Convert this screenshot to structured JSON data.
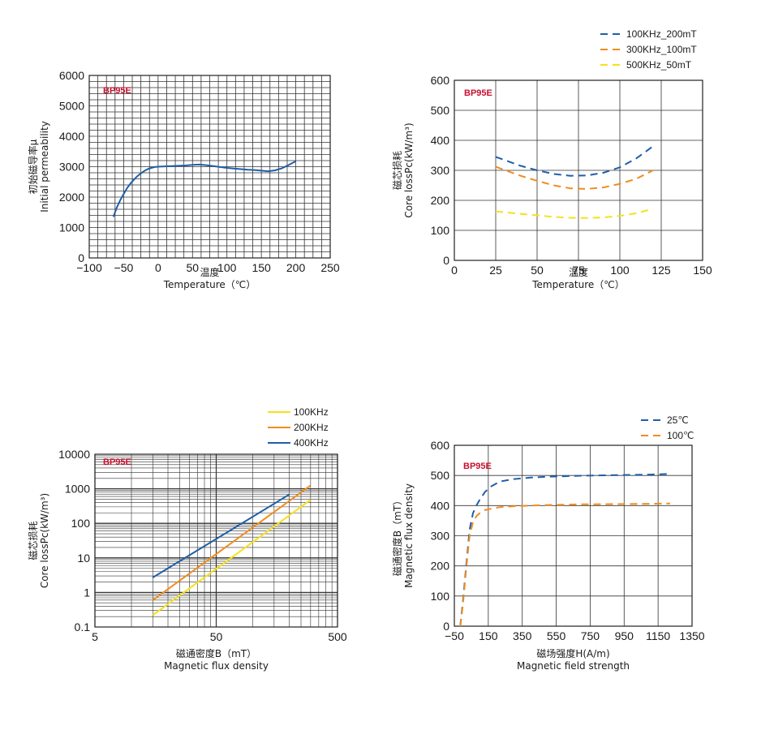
{
  "chart_data": [
    {
      "id": "perm",
      "type": "line",
      "brand": "BP95E",
      "xlabel_cn": "温度",
      "xlabel": "Temperature（℃）",
      "ylabel_cn": "初始磁导率μ",
      "ylabel": "Initial permeability",
      "xlim": [
        -100,
        250
      ],
      "ylim": [
        0,
        6000
      ],
      "x_ticks": [
        -100,
        -50,
        0,
        50,
        100,
        150,
        200,
        250
      ],
      "x_tick_labels": [
        "−100",
        "−50",
        "0",
        "50",
        "100",
        "150",
        "200",
        "250"
      ],
      "y_ticks": [
        0,
        1000,
        2000,
        3000,
        4000,
        5000,
        6000
      ],
      "y_tick_labels": [
        "0",
        "1000",
        "2000",
        "3000",
        "4000",
        "5000",
        "6000"
      ],
      "grid": true,
      "series": [
        {
          "color": "#1f5fa8",
          "dash": false,
          "x": [
            -65,
            -60,
            -55,
            -50,
            -45,
            -40,
            -35,
            -30,
            -25,
            -20,
            -15,
            -10,
            -5,
            0,
            10,
            20,
            30,
            40,
            50,
            60,
            70,
            80,
            90,
            100,
            110,
            120,
            130,
            140,
            150,
            160,
            170,
            180,
            190,
            200
          ],
          "y": [
            1350,
            1650,
            1900,
            2100,
            2300,
            2450,
            2580,
            2690,
            2780,
            2860,
            2920,
            2960,
            2990,
            3000,
            3010,
            3020,
            3030,
            3040,
            3060,
            3070,
            3050,
            3020,
            2990,
            2960,
            2940,
            2920,
            2900,
            2890,
            2870,
            2850,
            2880,
            2950,
            3060,
            3180
          ]
        }
      ]
    },
    {
      "id": "loss_temp",
      "type": "line",
      "brand": "BP95E",
      "xlabel_cn": "温度",
      "xlabel": "Temperature（℃）",
      "ylabel_cn": "磁芯损耗",
      "ylabel": "Core lossPc(kW/m³)",
      "xlim": [
        0,
        150
      ],
      "ylim": [
        0,
        600
      ],
      "x_ticks": [
        0,
        25,
        50,
        75,
        100,
        125,
        150
      ],
      "x_tick_labels": [
        "0",
        "25",
        "50",
        "75",
        "100",
        "125",
        "150"
      ],
      "y_ticks": [
        0,
        100,
        200,
        300,
        400,
        500,
        600
      ],
      "y_tick_labels": [
        "0",
        "100",
        "200",
        "300",
        "400",
        "500",
        "600"
      ],
      "grid": true,
      "legend": "top-right",
      "series": [
        {
          "name": "100KHz_200mT",
          "color": "#1f5fa8",
          "dash": true,
          "x": [
            25,
            40,
            50,
            60,
            70,
            80,
            90,
            100,
            110,
            120
          ],
          "y": [
            345,
            315,
            300,
            288,
            282,
            283,
            292,
            310,
            340,
            380
          ]
        },
        {
          "name": "300KHz_100mT",
          "color": "#f08c1e",
          "dash": true,
          "x": [
            25,
            40,
            50,
            60,
            70,
            80,
            90,
            100,
            110,
            120
          ],
          "y": [
            312,
            282,
            265,
            250,
            240,
            238,
            243,
            255,
            272,
            300
          ]
        },
        {
          "name": "500KHz_50mT",
          "color": "#f5e11c",
          "dash": true,
          "x": [
            25,
            40,
            50,
            60,
            70,
            80,
            90,
            100,
            110,
            120
          ],
          "y": [
            163,
            155,
            150,
            145,
            142,
            141,
            143,
            148,
            157,
            172
          ]
        }
      ]
    },
    {
      "id": "loss_flux",
      "type": "line",
      "brand": "BP95E",
      "xlabel_cn": "磁通密度B（mT）",
      "xlabel": "Magnetic flux density",
      "ylabel_cn": "磁芯损耗",
      "ylabel": "Core lossPc(kW/m³)",
      "xscale": "log",
      "yscale": "log",
      "xlim": [
        5,
        500
      ],
      "ylim": [
        0.1,
        10000
      ],
      "x_ticks": [
        5,
        50,
        500
      ],
      "x_tick_labels": [
        "5",
        "50",
        "500"
      ],
      "y_ticks": [
        0.1,
        1,
        10,
        100,
        1000,
        10000
      ],
      "y_tick_labels": [
        "0.1",
        "1",
        "10",
        "100",
        "1000",
        "10000"
      ],
      "grid": true,
      "legend": "top-right",
      "series": [
        {
          "name": "100KHz",
          "color": "#f5e11c",
          "dash": false,
          "x": [
            15,
            300
          ],
          "y": [
            0.22,
            480
          ]
        },
        {
          "name": "200KHz",
          "color": "#f08c1e",
          "dash": false,
          "x": [
            15,
            300
          ],
          "y": [
            0.6,
            1250
          ]
        },
        {
          "name": "400KHz",
          "color": "#1f5fa8",
          "dash": false,
          "x": [
            15,
            200
          ],
          "y": [
            2.7,
            680
          ]
        }
      ]
    },
    {
      "id": "bh",
      "type": "line",
      "brand": "BP95E",
      "xlabel_cn": "磁场强度H(A/m)",
      "xlabel": "Magnetic field strength",
      "ylabel_cn": "磁通密度B（mT）",
      "ylabel": "Magnetic flux density",
      "xlim": [
        -50,
        1350
      ],
      "ylim": [
        0,
        600
      ],
      "x_ticks": [
        -50,
        150,
        350,
        550,
        750,
        950,
        1150,
        1350
      ],
      "x_tick_labels": [
        "−50",
        "150",
        "350",
        "550",
        "750",
        "950",
        "1150",
        "1350"
      ],
      "y_ticks": [
        0,
        100,
        200,
        300,
        400,
        500,
        600
      ],
      "y_tick_labels": [
        "0",
        "100",
        "200",
        "300",
        "400",
        "500",
        "600"
      ],
      "grid": true,
      "legend": "top-right",
      "series": [
        {
          "name": "25℃",
          "color": "#1f5fa8",
          "dash": true,
          "x": [
            -15,
            0,
            20,
            40,
            60,
            80,
            100,
            130,
            170,
            220,
            300,
            400,
            500,
            700,
            900,
            1100,
            1220
          ],
          "y": [
            0,
            80,
            200,
            320,
            375,
            400,
            420,
            445,
            465,
            480,
            488,
            493,
            496,
            499,
            501,
            503,
            505
          ]
        },
        {
          "name": "100℃",
          "color": "#f08c1e",
          "dash": true,
          "x": [
            -15,
            0,
            20,
            40,
            60,
            80,
            100,
            130,
            170,
            220,
            300,
            400,
            500,
            700,
            900,
            1100,
            1220
          ],
          "y": [
            0,
            70,
            190,
            300,
            345,
            365,
            375,
            385,
            390,
            395,
            398,
            400,
            402,
            404,
            405,
            406,
            407
          ]
        }
      ]
    }
  ]
}
